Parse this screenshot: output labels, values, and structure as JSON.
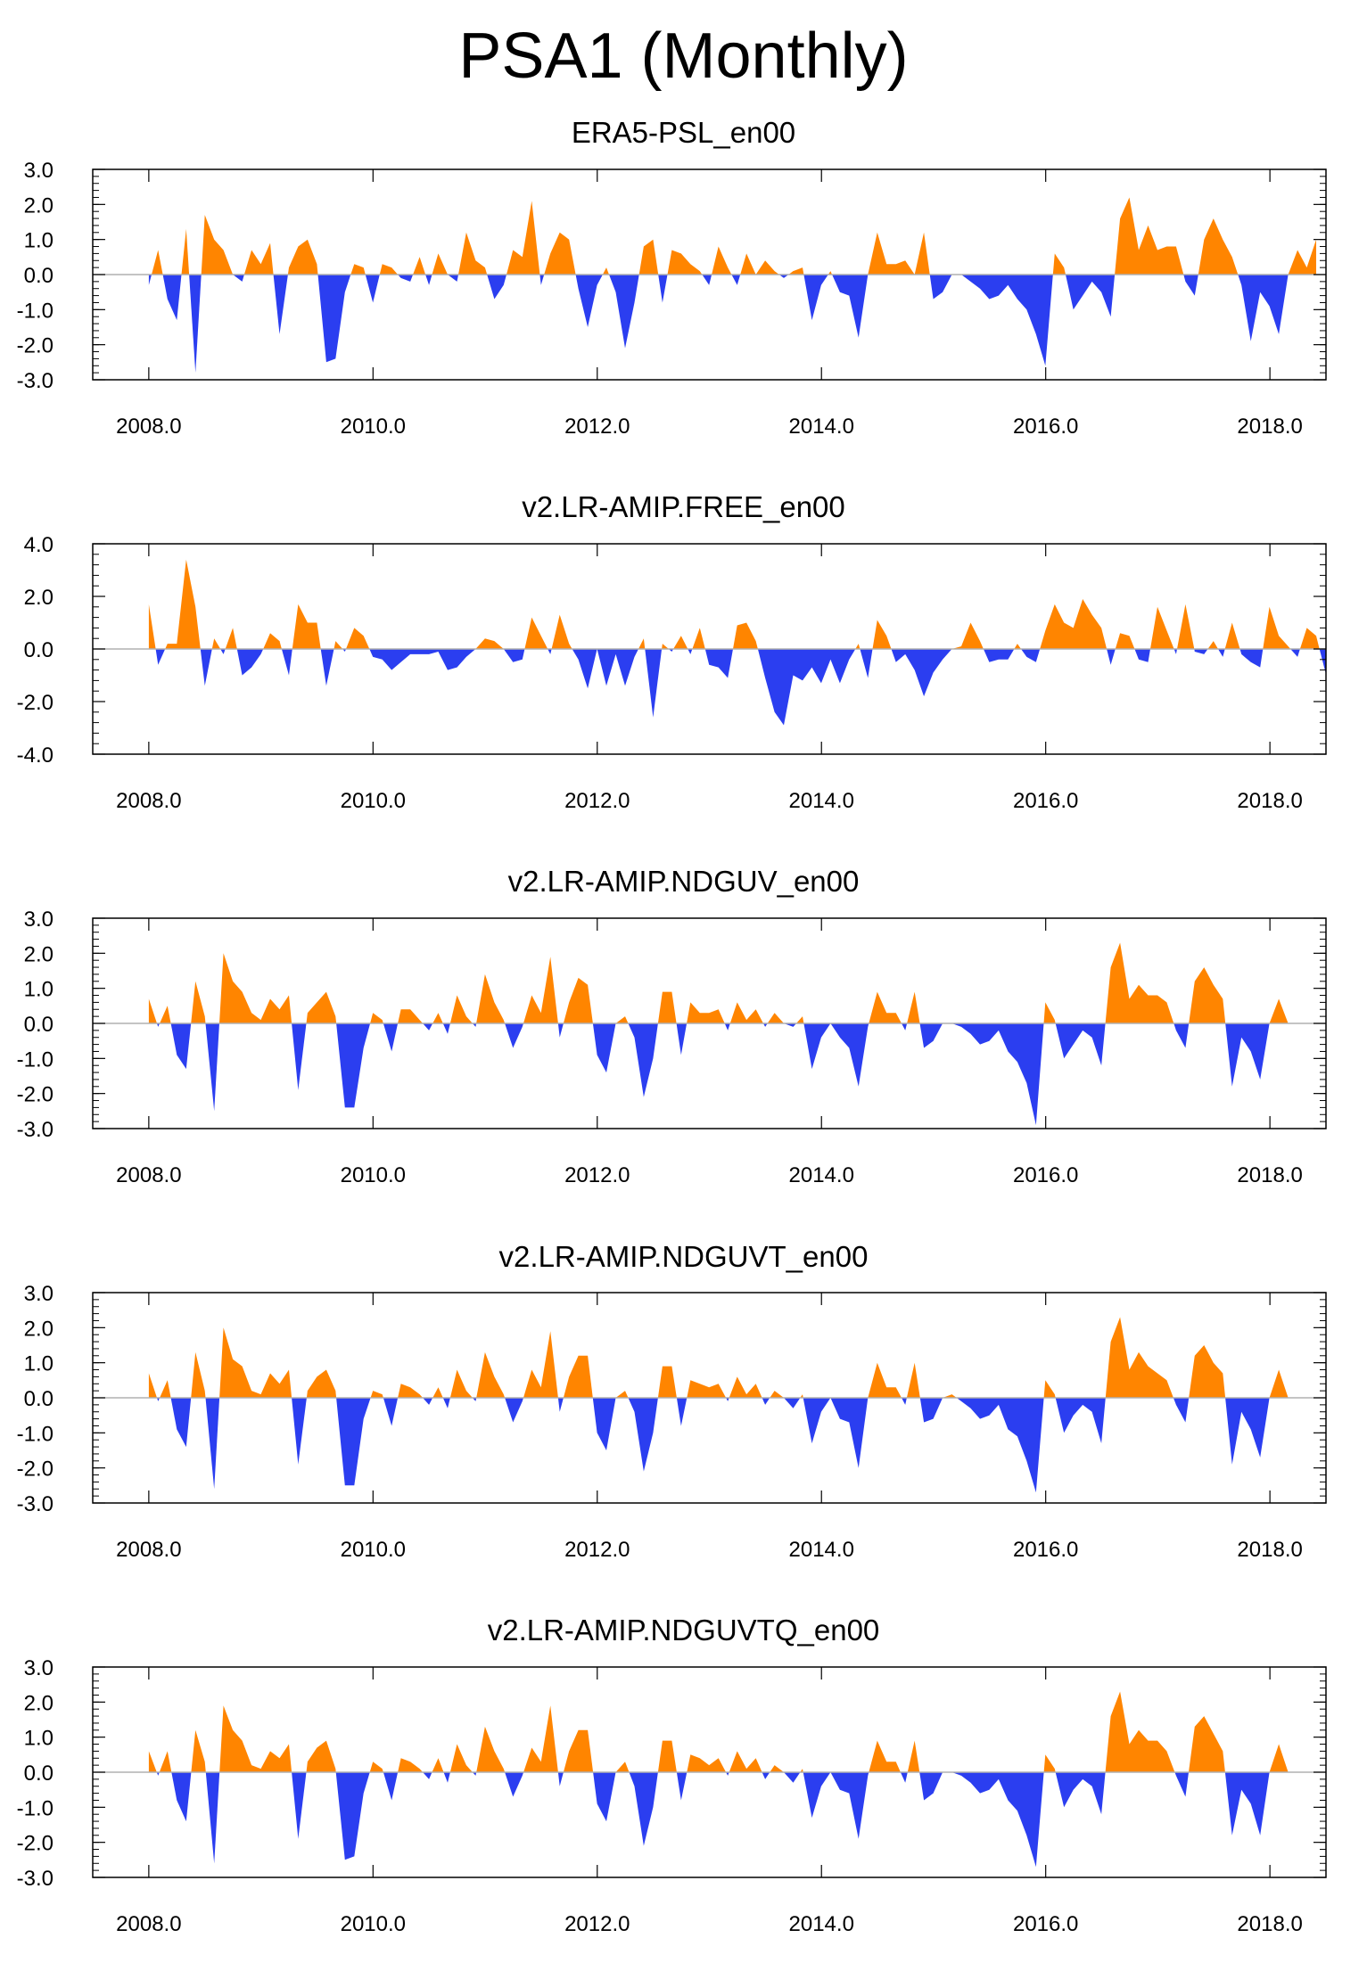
{
  "figure_title": "PSA1 (Monthly)",
  "colors": {
    "positive": "#ff8500",
    "negative": "#2b3ef0",
    "axis": "#000000",
    "zero_line": "#b0b0b0"
  },
  "chart_data": [
    {
      "type": "area",
      "title": "ERA5-PSL_en00",
      "xlim": [
        2007.5,
        2018.5
      ],
      "ylim": [
        -3.0,
        3.0
      ],
      "yticks": [
        -3.0,
        -2.0,
        -1.0,
        0.0,
        1.0,
        2.0,
        3.0
      ],
      "ytick_labels": [
        "-3.0",
        "-2.0",
        "-1.0",
        "0.0",
        "1.0",
        "2.0",
        "3.0"
      ],
      "xticks": [
        2008.0,
        2010.0,
        2012.0,
        2014.0,
        2016.0,
        2018.0
      ],
      "xtick_labels": [
        "2008.0",
        "2010.0",
        "2012.0",
        "2014.0",
        "2016.0",
        "2018.0"
      ],
      "x_start": 2008.0,
      "x_step": 0.0833,
      "values": [
        -0.3,
        0.7,
        -0.7,
        -1.3,
        1.3,
        -2.8,
        1.7,
        1.0,
        0.7,
        0.0,
        -0.2,
        0.7,
        0.3,
        0.9,
        -1.7,
        0.2,
        0.8,
        1.0,
        0.3,
        -2.5,
        -2.4,
        -0.5,
        0.3,
        0.2,
        -0.8,
        0.3,
        0.2,
        -0.1,
        -0.2,
        0.5,
        -0.3,
        0.6,
        0.0,
        -0.2,
        1.2,
        0.4,
        0.2,
        -0.7,
        -0.3,
        0.7,
        0.5,
        2.1,
        -0.3,
        0.6,
        1.2,
        1.0,
        -0.4,
        -1.5,
        -0.3,
        0.2,
        -0.5,
        -2.1,
        -0.8,
        0.8,
        1.0,
        -0.8,
        0.7,
        0.6,
        0.3,
        0.1,
        -0.3,
        0.8,
        0.2,
        -0.3,
        0.6,
        0.0,
        0.4,
        0.1,
        -0.1,
        0.1,
        0.2,
        -1.3,
        -0.3,
        0.1,
        -0.5,
        -0.6,
        -1.8,
        0.0,
        1.2,
        0.3,
        0.3,
        0.4,
        0.0,
        1.2,
        -0.7,
        -0.5,
        0.0,
        0.0,
        -0.2,
        -0.4,
        -0.7,
        -0.6,
        -0.3,
        -0.7,
        -1.0,
        -1.7,
        -2.6,
        0.6,
        0.2,
        -1.0,
        -0.6,
        -0.2,
        -0.5,
        -1.2,
        1.6,
        2.2,
        0.7,
        1.4,
        0.7,
        0.8,
        0.8,
        -0.2,
        -0.6,
        1.0,
        1.6,
        1.0,
        0.5,
        -0.3,
        -1.9,
        -0.5,
        -0.9,
        -1.7,
        0.0,
        0.7,
        0.2,
        1.0
      ]
    },
    {
      "type": "area",
      "title": "v2.LR-AMIP.FREE_en00",
      "xlim": [
        2007.5,
        2018.5
      ],
      "ylim": [
        -4.0,
        4.0
      ],
      "yticks": [
        -4.0,
        -2.0,
        0.0,
        2.0,
        4.0
      ],
      "ytick_labels": [
        "-4.0",
        "-2.0",
        "0.0",
        "2.0",
        "4.0"
      ],
      "xticks": [
        2008.0,
        2010.0,
        2012.0,
        2014.0,
        2016.0,
        2018.0
      ],
      "xtick_labels": [
        "2008.0",
        "2010.0",
        "2012.0",
        "2014.0",
        "2016.0",
        "2018.0"
      ],
      "x_start": 2008.0,
      "x_step": 0.0833,
      "values": [
        1.7,
        -0.6,
        0.2,
        0.2,
        3.4,
        1.6,
        -1.4,
        0.4,
        -0.2,
        0.8,
        -1.0,
        -0.7,
        -0.2,
        0.6,
        0.3,
        -1.0,
        1.7,
        1.0,
        1.0,
        -1.4,
        0.3,
        -0.1,
        0.8,
        0.5,
        -0.3,
        -0.4,
        -0.8,
        -0.5,
        -0.2,
        -0.2,
        -0.2,
        -0.1,
        -0.8,
        -0.7,
        -0.3,
        0.0,
        0.4,
        0.3,
        0.0,
        -0.5,
        -0.4,
        1.2,
        0.5,
        -0.2,
        1.3,
        0.2,
        -0.4,
        -1.5,
        0.0,
        -1.4,
        -0.2,
        -1.4,
        -0.3,
        0.4,
        -2.6,
        0.2,
        -0.1,
        0.5,
        -0.2,
        0.8,
        -0.6,
        -0.7,
        -1.1,
        0.9,
        1.0,
        0.3,
        -1.1,
        -2.4,
        -2.9,
        -1.0,
        -1.2,
        -0.7,
        -1.3,
        -0.4,
        -1.3,
        -0.4,
        0.2,
        -1.1,
        1.1,
        0.5,
        -0.5,
        -0.2,
        -0.8,
        -1.8,
        -0.9,
        -0.4,
        0.0,
        0.1,
        1.0,
        0.3,
        -0.5,
        -0.4,
        -0.4,
        0.2,
        -0.3,
        -0.5,
        0.7,
        1.7,
        1.0,
        0.8,
        1.9,
        1.3,
        0.8,
        -0.6,
        0.6,
        0.5,
        -0.4,
        -0.5,
        1.6,
        0.7,
        -0.2,
        1.7,
        -0.1,
        -0.2,
        0.3,
        -0.3,
        1.0,
        -0.2,
        -0.5,
        -0.7,
        1.6,
        0.5,
        0.1,
        -0.3,
        0.8,
        0.5,
        -0.9
      ]
    },
    {
      "type": "area",
      "title": "v2.LR-AMIP.NDGUV_en00",
      "xlim": [
        2007.5,
        2018.5
      ],
      "ylim": [
        -3.0,
        3.0
      ],
      "yticks": [
        -3.0,
        -2.0,
        -1.0,
        0.0,
        1.0,
        2.0,
        3.0
      ],
      "ytick_labels": [
        "-3.0",
        "-2.0",
        "-1.0",
        "0.0",
        "1.0",
        "2.0",
        "3.0"
      ],
      "xticks": [
        2008.0,
        2010.0,
        2012.0,
        2014.0,
        2016.0,
        2018.0
      ],
      "xtick_labels": [
        "2008.0",
        "2010.0",
        "2012.0",
        "2014.0",
        "2016.0",
        "2018.0"
      ],
      "x_start": 2008.0,
      "x_step": 0.0833,
      "values": [
        0.7,
        -0.1,
        0.5,
        -0.9,
        -1.3,
        1.2,
        0.2,
        -2.5,
        2.0,
        1.2,
        0.9,
        0.3,
        0.1,
        0.7,
        0.4,
        0.8,
        -1.9,
        0.3,
        0.6,
        0.9,
        0.2,
        -2.4,
        -2.4,
        -0.7,
        0.3,
        0.1,
        -0.8,
        0.4,
        0.4,
        0.1,
        -0.2,
        0.3,
        -0.3,
        0.8,
        0.2,
        -0.1,
        1.4,
        0.6,
        0.1,
        -0.7,
        -0.1,
        0.8,
        0.3,
        1.9,
        -0.4,
        0.6,
        1.3,
        1.1,
        -0.9,
        -1.4,
        0.0,
        0.2,
        -0.4,
        -2.1,
        -1.0,
        0.9,
        0.9,
        -0.9,
        0.6,
        0.3,
        0.3,
        0.4,
        -0.2,
        0.6,
        0.1,
        0.4,
        -0.1,
        0.3,
        0.0,
        -0.1,
        0.2,
        -1.3,
        -0.4,
        0.0,
        -0.4,
        -0.7,
        -1.8,
        -0.1,
        0.9,
        0.3,
        0.3,
        -0.2,
        0.9,
        -0.7,
        -0.5,
        0.0,
        0.0,
        -0.1,
        -0.3,
        -0.6,
        -0.5,
        -0.2,
        -0.8,
        -1.1,
        -1.7,
        -2.9,
        0.6,
        0.1,
        -1.0,
        -0.6,
        -0.2,
        -0.4,
        -1.2,
        1.6,
        2.3,
        0.7,
        1.1,
        0.8,
        0.8,
        0.6,
        -0.2,
        -0.7,
        1.2,
        1.6,
        1.1,
        0.7,
        -1.8,
        -0.4,
        -0.8,
        -1.6,
        0.0,
        0.7,
        0.0
      ]
    },
    {
      "type": "area",
      "title": "v2.LR-AMIP.NDGUVT_en00",
      "xlim": [
        2007.5,
        2018.5
      ],
      "ylim": [
        -3.0,
        3.0
      ],
      "yticks": [
        -3.0,
        -2.0,
        -1.0,
        0.0,
        1.0,
        2.0,
        3.0
      ],
      "ytick_labels": [
        "-3.0",
        "-2.0",
        "-1.0",
        "0.0",
        "1.0",
        "2.0",
        "3.0"
      ],
      "xticks": [
        2008.0,
        2010.0,
        2012.0,
        2014.0,
        2016.0,
        2018.0
      ],
      "xtick_labels": [
        "2008.0",
        "2010.0",
        "2012.0",
        "2014.0",
        "2016.0",
        "2018.0"
      ],
      "x_start": 2008.0,
      "x_step": 0.0833,
      "values": [
        0.7,
        -0.1,
        0.5,
        -0.9,
        -1.4,
        1.3,
        0.2,
        -2.6,
        2.0,
        1.1,
        0.9,
        0.2,
        0.1,
        0.7,
        0.4,
        0.8,
        -1.9,
        0.2,
        0.6,
        0.8,
        0.2,
        -2.5,
        -2.5,
        -0.6,
        0.2,
        0.1,
        -0.8,
        0.4,
        0.3,
        0.1,
        -0.2,
        0.3,
        -0.3,
        0.8,
        0.2,
        -0.1,
        1.3,
        0.6,
        0.1,
        -0.7,
        -0.1,
        0.8,
        0.3,
        1.9,
        -0.4,
        0.6,
        1.2,
        1.2,
        -1.0,
        -1.5,
        0.0,
        0.2,
        -0.4,
        -2.1,
        -1.0,
        0.9,
        0.9,
        -0.8,
        0.5,
        0.4,
        0.3,
        0.4,
        -0.1,
        0.6,
        0.1,
        0.4,
        -0.2,
        0.2,
        0.0,
        -0.3,
        0.1,
        -1.3,
        -0.4,
        0.0,
        -0.6,
        -0.7,
        -2.0,
        0.0,
        1.0,
        0.3,
        0.3,
        -0.2,
        1.0,
        -0.7,
        -0.6,
        0.0,
        0.1,
        -0.1,
        -0.3,
        -0.6,
        -0.5,
        -0.2,
        -0.9,
        -1.1,
        -1.8,
        -2.7,
        0.5,
        0.1,
        -1.0,
        -0.5,
        -0.2,
        -0.4,
        -1.3,
        1.6,
        2.3,
        0.8,
        1.3,
        0.9,
        0.7,
        0.5,
        -0.2,
        -0.7,
        1.2,
        1.5,
        1.0,
        0.7,
        -1.9,
        -0.4,
        -0.9,
        -1.7,
        0.0,
        0.8,
        0.0
      ]
    },
    {
      "type": "area",
      "title": "v2.LR-AMIP.NDGUVTQ_en00",
      "xlim": [
        2007.5,
        2018.5
      ],
      "ylim": [
        -3.0,
        3.0
      ],
      "yticks": [
        -3.0,
        -2.0,
        -1.0,
        0.0,
        1.0,
        2.0,
        3.0
      ],
      "ytick_labels": [
        "-3.0",
        "-2.0",
        "-1.0",
        "0.0",
        "1.0",
        "2.0",
        "3.0"
      ],
      "xticks": [
        2008.0,
        2010.0,
        2012.0,
        2014.0,
        2016.0,
        2018.0
      ],
      "xtick_labels": [
        "2008.0",
        "2010.0",
        "2012.0",
        "2014.0",
        "2016.0",
        "2018.0"
      ],
      "x_start": 2008.0,
      "x_step": 0.0833,
      "values": [
        0.6,
        -0.1,
        0.6,
        -0.8,
        -1.4,
        1.2,
        0.3,
        -2.6,
        1.9,
        1.2,
        0.9,
        0.2,
        0.1,
        0.6,
        0.4,
        0.8,
        -1.9,
        0.3,
        0.7,
        0.9,
        0.1,
        -2.5,
        -2.4,
        -0.6,
        0.3,
        0.1,
        -0.8,
        0.4,
        0.3,
        0.1,
        -0.2,
        0.4,
        -0.3,
        0.8,
        0.2,
        -0.1,
        1.3,
        0.6,
        0.1,
        -0.7,
        -0.1,
        0.7,
        0.3,
        1.9,
        -0.4,
        0.6,
        1.2,
        1.2,
        -0.9,
        -1.4,
        0.0,
        0.3,
        -0.4,
        -2.1,
        -1.0,
        0.9,
        0.9,
        -0.8,
        0.5,
        0.4,
        0.2,
        0.4,
        -0.1,
        0.6,
        0.1,
        0.4,
        -0.2,
        0.2,
        0.0,
        -0.3,
        0.1,
        -1.3,
        -0.4,
        0.0,
        -0.5,
        -0.6,
        -1.9,
        -0.1,
        0.9,
        0.3,
        0.3,
        -0.3,
        0.9,
        -0.8,
        -0.6,
        0.0,
        0.0,
        -0.1,
        -0.3,
        -0.6,
        -0.5,
        -0.2,
        -0.8,
        -1.1,
        -1.8,
        -2.7,
        0.5,
        0.1,
        -1.0,
        -0.5,
        -0.2,
        -0.4,
        -1.2,
        1.6,
        2.3,
        0.8,
        1.2,
        0.9,
        0.9,
        0.6,
        -0.1,
        -0.7,
        1.3,
        1.6,
        1.1,
        0.6,
        -1.8,
        -0.5,
        -0.9,
        -1.8,
        0.0,
        0.8,
        0.0
      ]
    }
  ]
}
